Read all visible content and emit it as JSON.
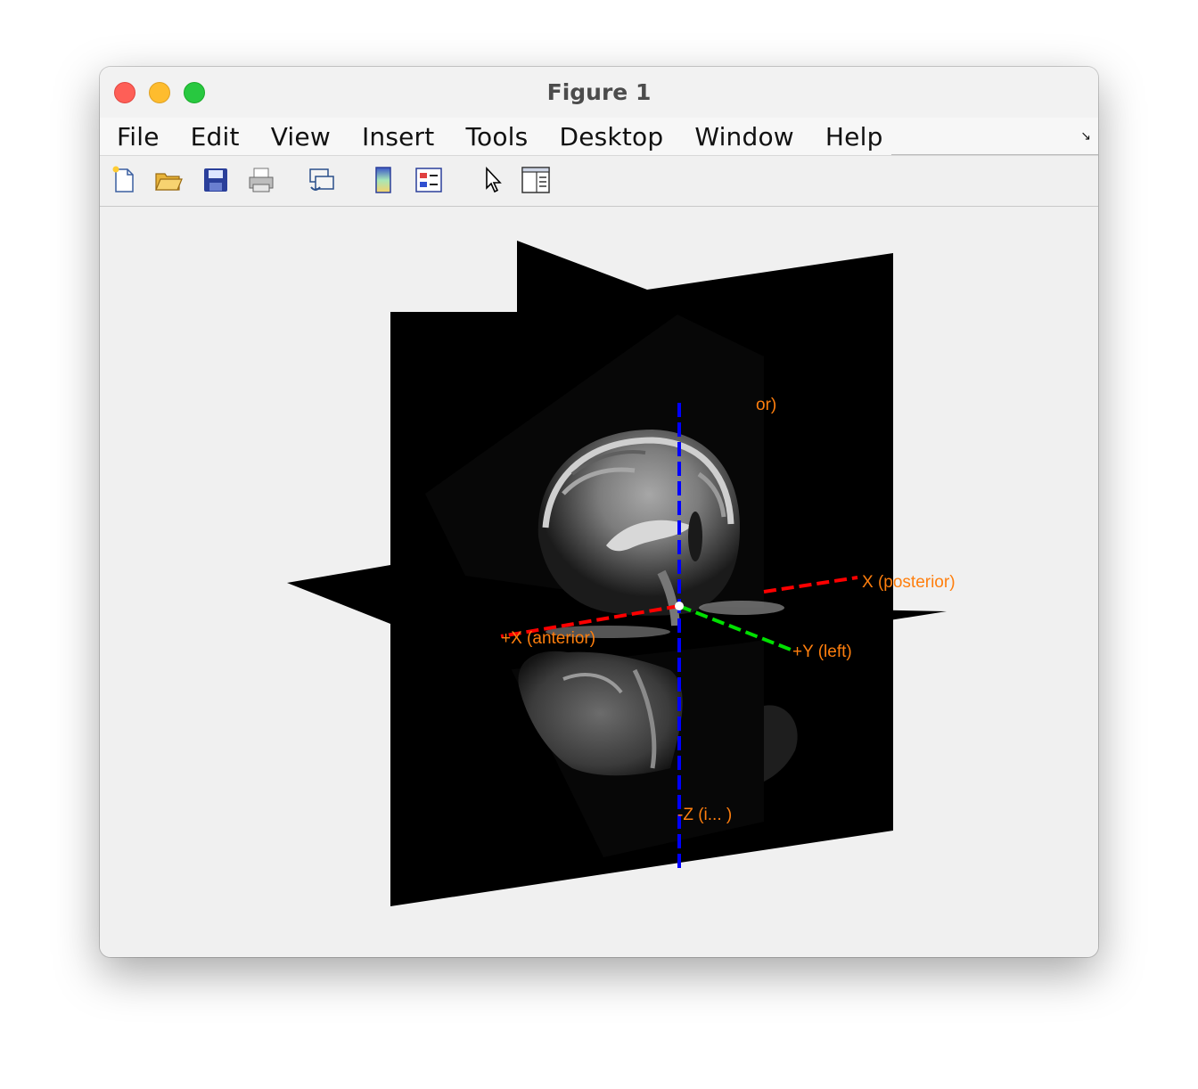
{
  "window": {
    "title": "Figure 1"
  },
  "menu": [
    "File",
    "Edit",
    "View",
    "Insert",
    "Tools",
    "Desktop",
    "Window",
    "Help"
  ],
  "toolbar": {
    "buttons": [
      {
        "name": "new-figure-icon"
      },
      {
        "name": "open-file-icon"
      },
      {
        "name": "save-icon"
      },
      {
        "name": "print-icon"
      },
      {
        "name": "link-plot-icon"
      },
      {
        "name": "insert-colorbar-icon"
      },
      {
        "name": "insert-legend-icon"
      },
      {
        "name": "edit-plot-pointer-icon"
      },
      {
        "name": "property-inspector-icon"
      }
    ]
  },
  "plot": {
    "labels": {
      "posterior": "X (posterior)",
      "anterior": "+X (anterior)",
      "left": "+Y (left)",
      "superior": "or)",
      "inferior": "-Z (i...   )"
    },
    "colors": {
      "x_axis": "#ff0000",
      "y_axis": "#00e000",
      "z_axis": "#0000ff",
      "label": "#ff7f0e",
      "plane": "#000000"
    }
  }
}
